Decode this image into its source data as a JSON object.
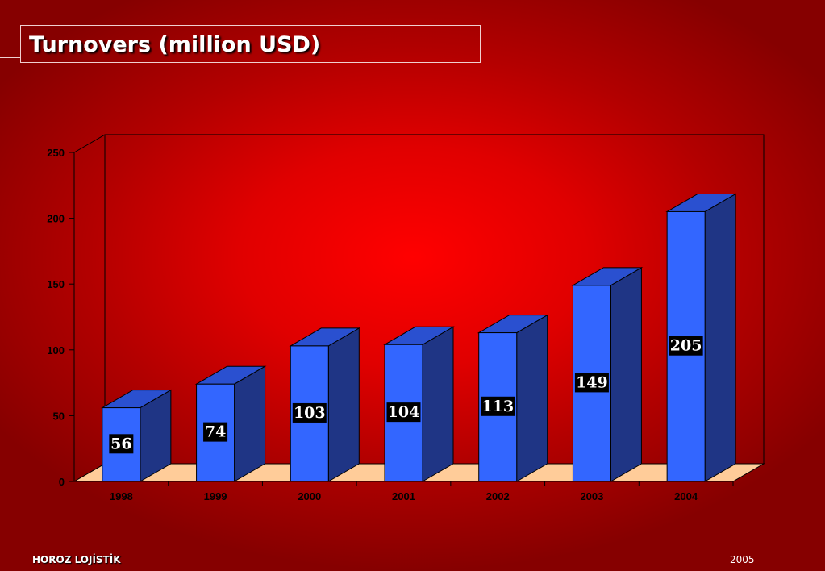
{
  "slide": {
    "title": "Turnovers (million USD)"
  },
  "footer": {
    "company": "HOROZ LOJİSTİK",
    "year": "2005"
  },
  "colors": {
    "bar_front": "#3366ff",
    "bar_top": "#2a50d0",
    "bar_side": "#1f3585",
    "floor": "#ffcc99",
    "background_center": "#ff0000",
    "background_edge": "#860000"
  },
  "chart_data": {
    "type": "bar",
    "title": "Turnovers (million USD)",
    "categories": [
      "1998",
      "1999",
      "2000",
      "2001",
      "2002",
      "2003",
      "2004"
    ],
    "series": [
      {
        "values": [
          56,
          74,
          103,
          104,
          113,
          149,
          205
        ]
      }
    ],
    "ylim": [
      0,
      250
    ],
    "yticks": [
      0,
      50,
      100,
      150,
      200,
      250
    ],
    "xlabel": "",
    "ylabel": "",
    "data_labels": true,
    "grid": false,
    "legend": "none",
    "style": "3d"
  }
}
